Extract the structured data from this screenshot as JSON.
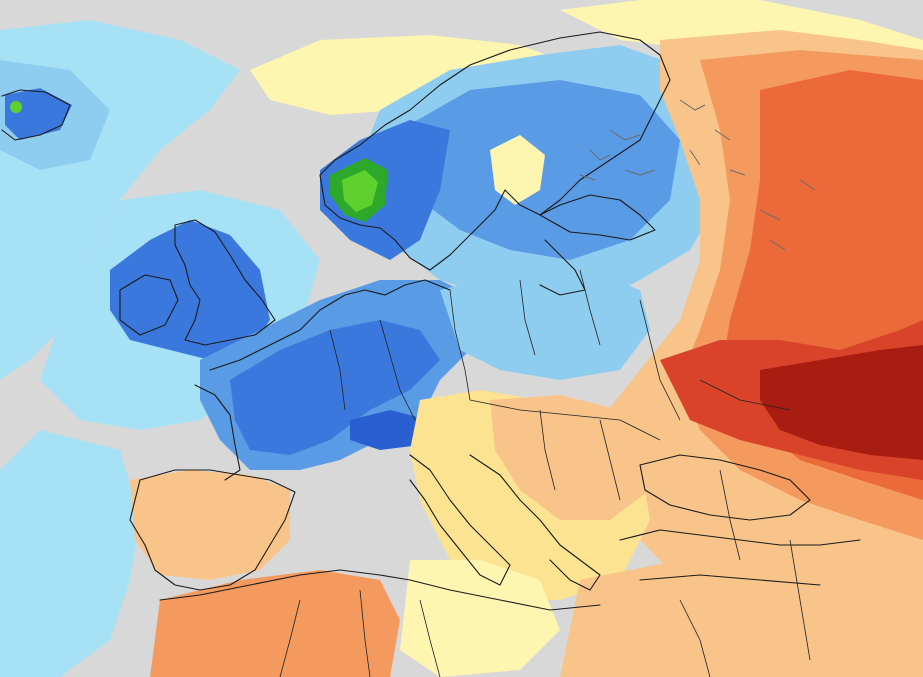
{
  "map": {
    "kind": "temperature-anomaly-map",
    "region": "Europe",
    "colors": {
      "neutral_gray": "#d8d8d8",
      "very_light_blue": "#a7e1f5",
      "light_blue": "#8fcdf0",
      "medium_blue": "#5a9be6",
      "blue": "#3b78de",
      "deep_blue": "#2a5fd2",
      "green": "#2ea82a",
      "bright_green": "#5fd12e",
      "pale_yellow": "#fdf5b0",
      "yellow": "#fbe391",
      "light_orange": "#f8c48a",
      "orange": "#f49a5f",
      "red_orange": "#ec6a3a",
      "red": "#d9432a",
      "dark_red": "#a81c12",
      "coastline": "#1a1a1a",
      "lakes": "#6b6b6b"
    }
  }
}
